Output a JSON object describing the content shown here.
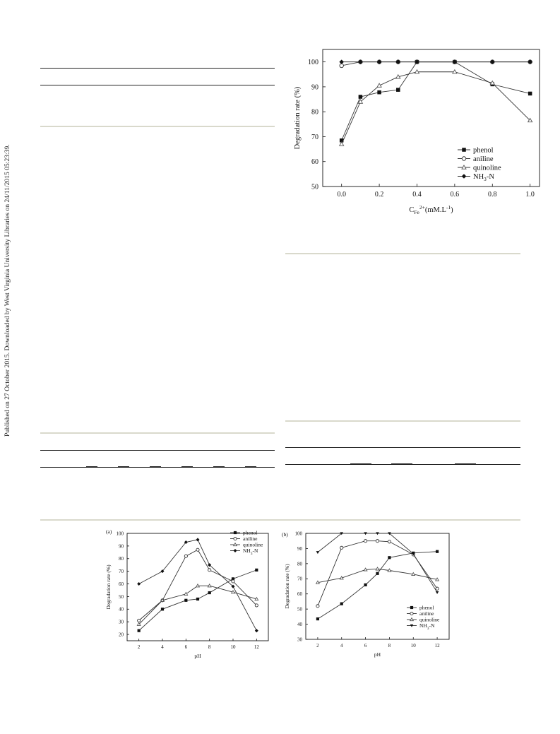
{
  "sidebar": {
    "text": "Published on 27 October 2015. Downloaded by West Virginia University Libraries on 24/11/2015 05:23:39."
  },
  "chart_data": [
    {
      "type": "line",
      "x": [
        0.0,
        0.1,
        0.2,
        0.3,
        0.4,
        0.6,
        0.8,
        1.0
      ],
      "xlabel": "C_Fe2+(mM.L-1)",
      "ylabel": "Degradation rate (%)",
      "xlim": [
        -0.1,
        1.05
      ],
      "ylim": [
        50,
        105
      ],
      "xticks": [
        0.0,
        0.2,
        0.4,
        0.6,
        0.8,
        1.0
      ],
      "yticks": [
        50,
        60,
        70,
        80,
        90,
        100
      ],
      "legend_position": "bottom-right",
      "series": [
        {
          "name": "phenol",
          "marker": "square-filled",
          "values": [
            68.5,
            86,
            87.8,
            88.8,
            100,
            100,
            91,
            87.3
          ]
        },
        {
          "name": "aniline",
          "marker": "circle-open",
          "values": [
            98.5,
            100,
            100,
            100,
            100,
            100,
            100,
            100
          ]
        },
        {
          "name": "quinoline",
          "marker": "triangle-open",
          "values": [
            67,
            84,
            90.5,
            94,
            96,
            96,
            91.5,
            76.5
          ]
        },
        {
          "name": "NH3-N",
          "marker": "diamond-filled",
          "values": [
            100,
            100,
            100,
            100,
            100,
            100,
            100,
            100
          ]
        }
      ]
    },
    {
      "type": "line",
      "panel_label": "(a)",
      "x": [
        2,
        4,
        6,
        7,
        8,
        10,
        12
      ],
      "xlabel": "pH",
      "ylabel": "Degradation rate (%)",
      "xlim": [
        1,
        13
      ],
      "ylim": [
        15,
        100
      ],
      "xticks": [
        2,
        4,
        6,
        8,
        10,
        12
      ],
      "yticks": [
        20,
        30,
        40,
        50,
        60,
        70,
        80,
        90,
        100
      ],
      "legend_position": "top-right",
      "series": [
        {
          "name": "phenol",
          "marker": "square-filled",
          "values": [
            23,
            40,
            47,
            48,
            53,
            64,
            71
          ]
        },
        {
          "name": "aniline",
          "marker": "circle-open",
          "values": [
            31,
            47,
            82,
            87,
            71,
            62,
            43
          ]
        },
        {
          "name": "quinoline",
          "marker": "triangle-open",
          "values": [
            28,
            47,
            52,
            58.5,
            58.5,
            53.5,
            48
          ]
        },
        {
          "name": "NH3-N",
          "marker": "diamond-filled",
          "values": [
            60,
            70,
            93,
            95,
            75,
            58,
            23
          ]
        }
      ]
    },
    {
      "type": "line",
      "panel_label": "(b)",
      "x": [
        2,
        4,
        6,
        7,
        8,
        10,
        12
      ],
      "xlabel": "pH",
      "ylabel": "Degradation rate (%)",
      "xlim": [
        1,
        13
      ],
      "ylim": [
        30,
        100
      ],
      "xticks": [
        2,
        4,
        6,
        8,
        10,
        12
      ],
      "yticks": [
        30,
        40,
        50,
        60,
        70,
        80,
        90,
        100
      ],
      "legend_position": "bottom-right",
      "series": [
        {
          "name": "phenol",
          "marker": "square-filled",
          "values": [
            43.5,
            53.5,
            66,
            73.5,
            84,
            87,
            88
          ]
        },
        {
          "name": "aniline",
          "marker": "circle-open",
          "values": [
            52,
            90.5,
            95,
            95,
            94.5,
            86,
            63.5
          ]
        },
        {
          "name": "quinoline",
          "marker": "triangle-open",
          "values": [
            67.5,
            70.5,
            76,
            76.5,
            75.5,
            73,
            69.5
          ]
        },
        {
          "name": "NH3-N",
          "marker": "triangle-down-filled",
          "values": [
            87.5,
            100,
            100,
            100,
            100,
            86.5,
            61
          ]
        }
      ]
    }
  ]
}
